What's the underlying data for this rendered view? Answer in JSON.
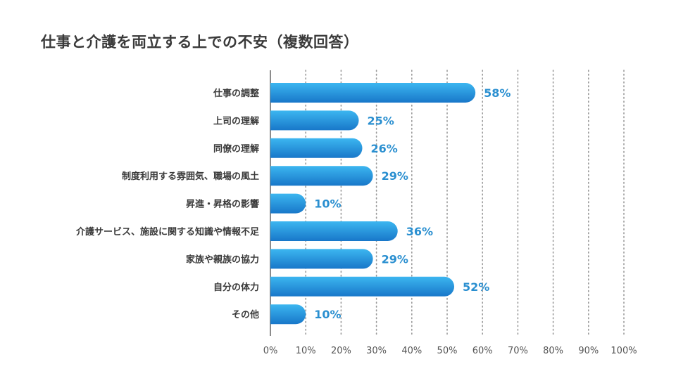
{
  "title": "仕事と介護を両立する上での不安（複数回答）",
  "chart_data": {
    "type": "bar",
    "orientation": "horizontal",
    "title": "仕事と介護を両立する上での不安（複数回答）",
    "categories": [
      "仕事の調整",
      "上司の理解",
      "同僚の理解",
      "制度利用する雰囲気、職場の風土",
      "昇進・昇格の影響",
      "介護サービス、施設に関する知識や情報不足",
      "家族や親族の協力",
      "自分の体力",
      "その他"
    ],
    "values": [
      58,
      25,
      26,
      29,
      10,
      36,
      29,
      52,
      10
    ],
    "value_labels": [
      "58%",
      "25%",
      "26%",
      "29%",
      "10%",
      "36%",
      "29%",
      "52%",
      "10%"
    ],
    "xlim": [
      0,
      100
    ],
    "x_ticks": [
      "0%",
      "10%",
      "20%",
      "30%",
      "40%",
      "50%",
      "60%",
      "70%",
      "80%",
      "90%",
      "100%"
    ],
    "grid": "vertical-dotted",
    "bar_color_top": "#3cb6f0",
    "bar_color_bottom": "#1877c9",
    "label_color": "#2a8fd0"
  }
}
